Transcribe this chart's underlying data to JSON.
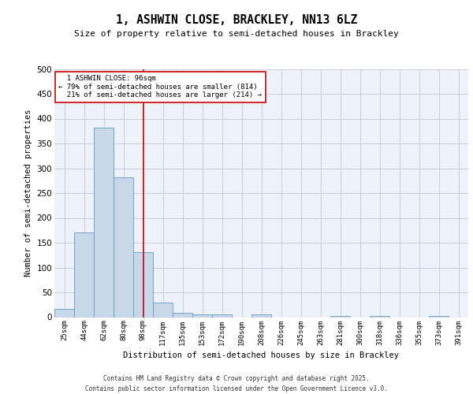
{
  "title_line1": "1, ASHWIN CLOSE, BRACKLEY, NN13 6LZ",
  "title_line2": "Size of property relative to semi-detached houses in Brackley",
  "xlabel": "Distribution of semi-detached houses by size in Brackley",
  "ylabel": "Number of semi-detached properties",
  "bar_labels": [
    "25sqm",
    "44sqm",
    "62sqm",
    "80sqm",
    "98sqm",
    "117sqm",
    "135sqm",
    "153sqm",
    "172sqm",
    "190sqm",
    "208sqm",
    "226sqm",
    "245sqm",
    "263sqm",
    "281sqm",
    "300sqm",
    "318sqm",
    "336sqm",
    "355sqm",
    "373sqm",
    "391sqm"
  ],
  "bar_values": [
    17,
    171,
    382,
    281,
    131,
    29,
    8,
    6,
    6,
    0,
    5,
    0,
    0,
    0,
    3,
    0,
    2,
    0,
    0,
    2,
    0
  ],
  "bar_color": "#c8d8e8",
  "bar_edge_color": "#6699cc",
  "property_label": "1 ASHWIN CLOSE: 96sqm",
  "pct_smaller": 79,
  "count_smaller": 814,
  "pct_larger": 21,
  "count_larger": 214,
  "vline_x": 4.0,
  "vline_color": "#cc0000",
  "annotation_box_color": "#cc0000",
  "ylim": [
    0,
    500
  ],
  "yticks": [
    0,
    50,
    100,
    150,
    200,
    250,
    300,
    350,
    400,
    450,
    500
  ],
  "grid_color": "#ccccdd",
  "bg_color": "#eef2fb",
  "footer_line1": "Contains HM Land Registry data © Crown copyright and database right 2025.",
  "footer_line2": "Contains public sector information licensed under the Open Government Licence v3.0."
}
